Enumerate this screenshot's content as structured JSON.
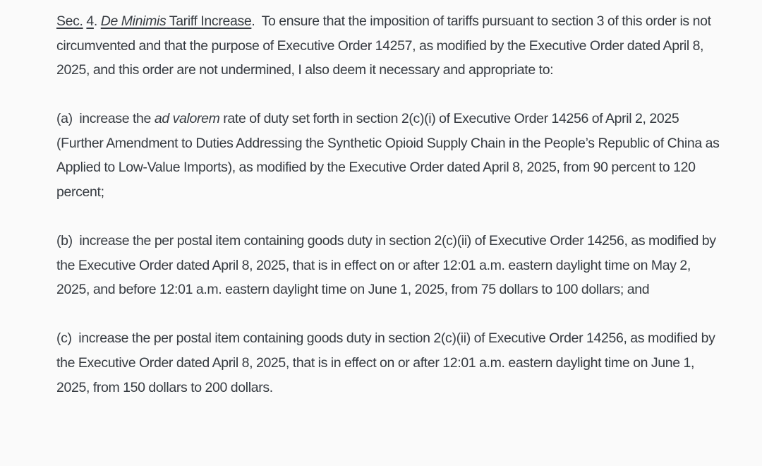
{
  "page": {
    "background_color": "#fafafa",
    "text_color": "#363b41"
  },
  "document": {
    "title": "Sec. 4. De Minimis Tariff Increase",
    "paragraphs": [
      {
        "name": "section-4-intro-paragraph",
        "runs": [
          {
            "text": "Sec.",
            "underline": true
          },
          {
            "text": " "
          },
          {
            "text": "4",
            "underline": true
          },
          {
            "text": ". "
          },
          {
            "text": "De Minimis",
            "underline": true,
            "italic": true
          },
          {
            "text": " Tariff Increase",
            "underline": true
          },
          {
            "text": ".  To ensure that the imposition of tariffs pursuant to section 3 of this order is not circumvented and that the purpose of Executive Order 14257, as modified by the Executive Order dated April 8, 2025, and this order are not undermined, I also deem it necessary and appropriate to:"
          }
        ]
      },
      {
        "name": "subsection-a-paragraph",
        "runs": [
          {
            "text": "(a)  increase the "
          },
          {
            "text": "ad valorem",
            "italic": true
          },
          {
            "text": " rate of duty set forth in section 2(c)(i) of Executive Order 14256 of April 2, 2025 (Further Amendment to Duties Addressing the Synthetic Opioid Supply Chain in the People’s Republic of China as Applied to Low-Value Imports), as modified by the Executive Order dated April 8, 2025, from 90 percent to 120 percent;"
          }
        ]
      },
      {
        "name": "subsection-b-paragraph",
        "runs": [
          {
            "text": "(b)  increase the per postal item containing goods duty in section 2(c)(ii) of Executive Order 14256, as modified by the Executive Order dated April 8, 2025, that is in effect on or after 12:01 a.m. eastern daylight time on May 2, 2025, and before 12:01 a.m. eastern daylight time on June 1, 2025, from 75 dollars to 100 dollars; and"
          }
        ]
      },
      {
        "name": "subsection-c-paragraph",
        "runs": [
          {
            "text": "(c)  increase the per postal item containing goods duty in section 2(c)(ii) of Executive Order 14256, as modified by the Executive Order dated April 8, 2025, that is in effect on or after 12:01 a.m. eastern daylight time on June 1, 2025, from 150 dollars to 200 dollars."
          }
        ]
      }
    ]
  }
}
